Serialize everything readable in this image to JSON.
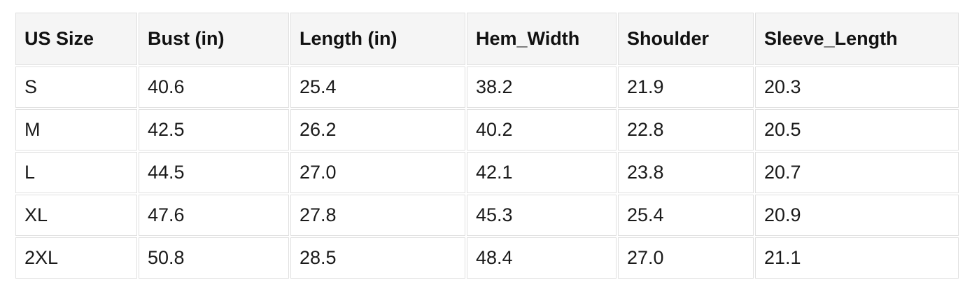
{
  "page": {
    "background": "#ffffff"
  },
  "table": {
    "title_semantic": "garment size chart",
    "colors": {
      "header_background": "#f5f5f5",
      "cell_background": "#ffffff",
      "border": "#e0e0e0",
      "text": "#1a1a1a"
    },
    "columns": [
      "US Size",
      "Bust (in)",
      "Length (in)",
      "Hem_Width",
      "Shoulder",
      "Sleeve_Length"
    ],
    "rows": [
      {
        "cells": [
          "S",
          "40.6",
          "25.4",
          "38.2",
          "21.9",
          "20.3"
        ]
      },
      {
        "cells": [
          "M",
          "42.5",
          "26.2",
          "40.2",
          "22.8",
          "20.5"
        ]
      },
      {
        "cells": [
          "L",
          "44.5",
          "27.0",
          "42.1",
          "23.8",
          "20.7"
        ]
      },
      {
        "cells": [
          "XL",
          "47.6",
          "27.8",
          "45.3",
          "25.4",
          "20.9"
        ]
      },
      {
        "cells": [
          "2XL",
          "50.8",
          "28.5",
          "48.4",
          "27.0",
          "21.1"
        ]
      }
    ]
  },
  "chart_data": {
    "type": "table",
    "columns": [
      "US Size",
      "Bust (in)",
      "Length (in)",
      "Hem_Width",
      "Shoulder",
      "Sleeve_Length"
    ],
    "rows": [
      [
        "S",
        40.6,
        25.4,
        38.2,
        21.9,
        20.3
      ],
      [
        "M",
        42.5,
        26.2,
        40.2,
        22.8,
        20.5
      ],
      [
        "L",
        44.5,
        27.0,
        42.1,
        23.8,
        20.7
      ],
      [
        "XL",
        47.6,
        27.8,
        45.3,
        25.4,
        20.9
      ],
      [
        "2XL",
        50.8,
        28.5,
        48.4,
        27.0,
        21.1
      ]
    ]
  }
}
